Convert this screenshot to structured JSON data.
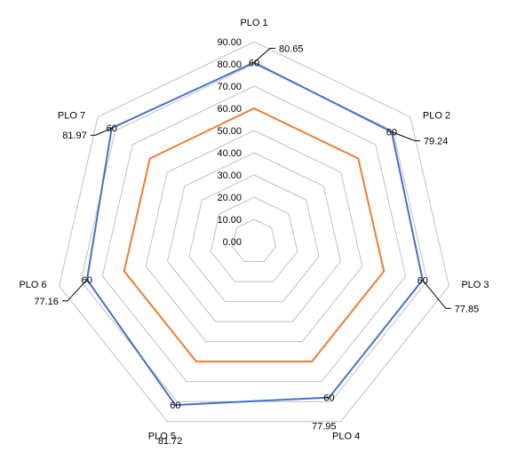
{
  "chart_data": {
    "type": "radar",
    "title": "",
    "categories": [
      "PLO 1",
      "PLO 2",
      "PLO 3",
      "PLO 4",
      "PLO 5",
      "PLO 6",
      "PLO 7"
    ],
    "rlim": [
      0,
      90
    ],
    "tick_labels": [
      "0.00",
      "10.00",
      "20.00",
      "30.00",
      "40.00",
      "50.00",
      "60.00",
      "70.00",
      "80.00",
      "90.00"
    ],
    "grid": true,
    "legend": "none",
    "series": [
      {
        "values": [
          80.65,
          79.24,
          77.85,
          77.95,
          81.72,
          77.16,
          81.97
        ],
        "labels": [
          "80.65",
          "79.24",
          "77.85",
          "77.95",
          "81.72",
          "77.16",
          "81.97"
        ],
        "color": "#4472C4"
      },
      {
        "values": [
          60,
          60,
          60,
          60,
          60,
          60,
          60
        ],
        "color": "#ED7D31"
      }
    ],
    "point_labels": [
      "60",
      "60",
      "60",
      "60",
      "60",
      "60",
      "60"
    ],
    "grid_color": "#C0C0C0"
  }
}
